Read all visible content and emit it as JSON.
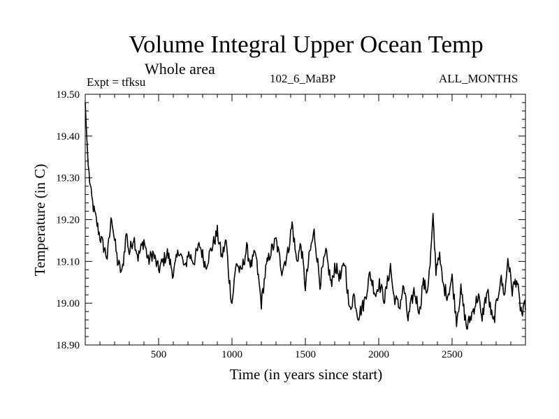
{
  "chart_data": {
    "type": "line",
    "title": "Volume Integral Upper Ocean Temp",
    "subtitle": "Whole area",
    "annotations": {
      "expt": "Expt = tfksu",
      "run": "102_6_MaBP",
      "months": "ALL_MONTHS"
    },
    "xlabel": "Time (in years since start)",
    "ylabel": "Temperature (in C)",
    "xlim": [
      0,
      3000
    ],
    "ylim": [
      18.9,
      19.5
    ],
    "x_ticks": [
      500,
      1000,
      1500,
      2000,
      2500
    ],
    "x_tick_labels": [
      "500",
      "1000",
      "1500",
      "2000",
      "2500"
    ],
    "y_ticks": [
      18.9,
      19.0,
      19.1,
      19.2,
      19.3,
      19.4,
      19.5
    ],
    "y_tick_labels": [
      "18.90",
      "19.00",
      "19.10",
      "19.20",
      "19.30",
      "19.40",
      "19.50"
    ],
    "grid": false,
    "series": [
      {
        "name": "Volume Integral Upper Ocean Temp",
        "x": [
          0,
          10,
          20,
          40,
          60,
          80,
          100,
          120,
          150,
          180,
          200,
          220,
          250,
          280,
          300,
          330,
          360,
          400,
          430,
          460,
          500,
          530,
          560,
          600,
          640,
          680,
          700,
          740,
          780,
          820,
          860,
          900,
          930,
          960,
          980,
          1000,
          1030,
          1060,
          1100,
          1130,
          1160,
          1200,
          1230,
          1260,
          1300,
          1340,
          1380,
          1410,
          1440,
          1470,
          1500,
          1530,
          1560,
          1600,
          1640,
          1680,
          1700,
          1740,
          1770,
          1800,
          1830,
          1860,
          1900,
          1940,
          1980,
          2000,
          2040,
          2080,
          2100,
          2140,
          2170,
          2200,
          2240,
          2280,
          2300,
          2330,
          2350,
          2370,
          2390,
          2410,
          2440,
          2470,
          2500,
          2530,
          2560,
          2600,
          2640,
          2680,
          2700,
          2740,
          2780,
          2800,
          2830,
          2860,
          2880,
          2910,
          2940,
          2960,
          2980,
          3000
        ],
        "values": [
          19.48,
          19.4,
          19.33,
          19.26,
          19.22,
          19.19,
          19.16,
          19.14,
          19.11,
          19.21,
          19.15,
          19.1,
          19.07,
          19.17,
          19.12,
          19.16,
          19.11,
          19.15,
          19.1,
          19.12,
          19.08,
          19.1,
          19.12,
          19.07,
          19.13,
          19.08,
          19.12,
          19.1,
          19.14,
          19.09,
          19.13,
          19.17,
          19.11,
          19.15,
          19.06,
          19.0,
          19.1,
          19.07,
          19.13,
          19.09,
          19.12,
          19.0,
          19.08,
          19.12,
          19.15,
          19.08,
          19.12,
          19.19,
          19.1,
          19.14,
          19.04,
          19.12,
          19.17,
          19.05,
          19.12,
          19.04,
          19.09,
          19.06,
          19.1,
          18.98,
          19.02,
          18.97,
          19.0,
          19.07,
          19.02,
          19.05,
          19.01,
          19.09,
          19.02,
          18.99,
          19.04,
          18.96,
          19.03,
          18.98,
          19.05,
          19.03,
          19.09,
          19.2,
          19.08,
          19.12,
          19.04,
          19.02,
          19.06,
          18.96,
          19.03,
          18.94,
          18.98,
          19.02,
          18.96,
          19.03,
          18.95,
          18.99,
          19.06,
          19.02,
          19.11,
          19.03,
          19.06,
          19.0,
          18.97,
          19.0
        ]
      }
    ]
  }
}
